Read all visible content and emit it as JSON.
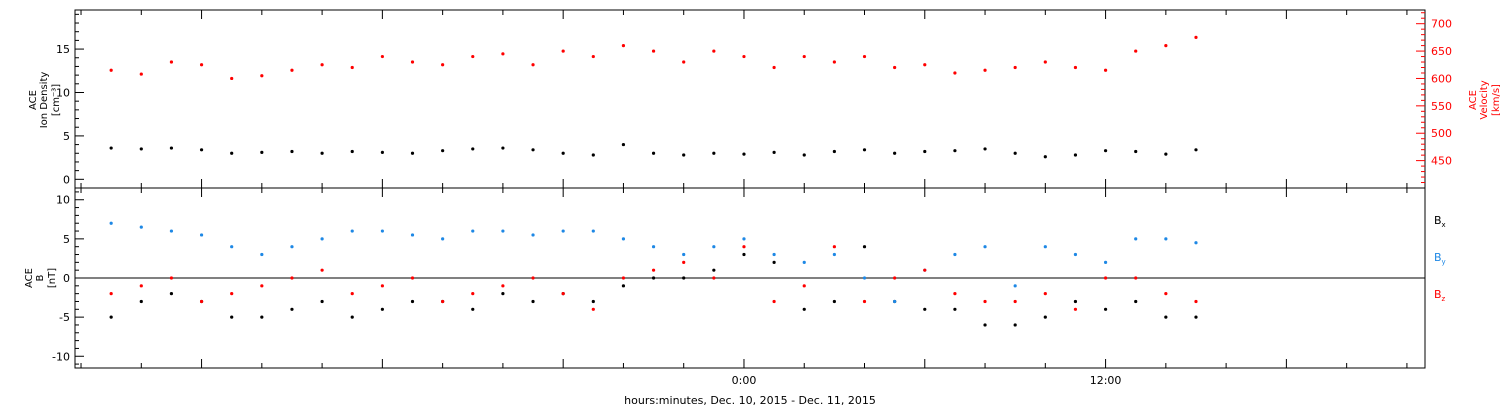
{
  "figure": {
    "footer_label": "hours:minutes, Dec. 10, 2015 - Dec. 11, 2015"
  },
  "chart_data": [
    {
      "type": "scatter",
      "panel": "top",
      "ylabel_left": [
        "ACE",
        "Ion Density",
        "[cm⁻³]"
      ],
      "ylabel_right": [
        "ACE",
        "Velocity",
        "[km/s]"
      ],
      "xlabel": "hours:minutes, Dec. 10, 2015 - Dec. 11, 2015",
      "x_unit": "hours relative to 00:00 Dec. 11, 2015",
      "xlim": [
        -22.2,
        22.6
      ],
      "x_tick_labels": [
        {
          "x": 0,
          "label": "0:00"
        },
        {
          "x": 12,
          "label": "12:00"
        }
      ],
      "ylim_left": [
        -1,
        19.5
      ],
      "ylim_right": [
        400,
        725
      ],
      "y_ticks_left": [
        0,
        5,
        10,
        15
      ],
      "y_ticks_right": [
        450,
        500,
        550,
        600,
        650,
        700
      ],
      "grid": false,
      "colors": {
        "density": "#000000",
        "velocity": "#ff0000"
      },
      "series": [
        {
          "name": "Ion Density",
          "axis": "left",
          "color": "#000000",
          "x": [
            -21,
            -20,
            -19,
            -18,
            -17,
            -16,
            -15,
            -14,
            -13,
            -12,
            -11,
            -10,
            -9,
            -8,
            -7,
            -6,
            -5,
            -4,
            -3,
            -2,
            -1,
            0,
            1,
            2,
            3,
            4,
            5,
            6,
            7,
            8,
            9,
            10,
            11,
            12,
            13,
            14,
            15
          ],
          "y": [
            3.6,
            3.5,
            3.6,
            3.4,
            3.0,
            3.1,
            3.2,
            3.0,
            3.2,
            3.1,
            3.0,
            3.3,
            3.5,
            3.6,
            3.4,
            3.0,
            2.8,
            4.0,
            3.0,
            2.8,
            3.0,
            2.9,
            3.1,
            2.8,
            3.2,
            3.4,
            3.0,
            3.2,
            3.3,
            3.5,
            3.0,
            2.6,
            2.8,
            3.3,
            3.2,
            2.9,
            3.4
          ]
        },
        {
          "name": "Velocity",
          "axis": "right",
          "color": "#ff0000",
          "x": [
            -21,
            -20,
            -19,
            -18,
            -17,
            -16,
            -15,
            -14,
            -13,
            -12,
            -11,
            -10,
            -9,
            -8,
            -7,
            -6,
            -5,
            -4,
            -3,
            -2,
            -1,
            0,
            1,
            2,
            3,
            4,
            5,
            6,
            7,
            8,
            9,
            10,
            11,
            12,
            13,
            14,
            15
          ],
          "y": [
            615,
            608,
            630,
            625,
            600,
            605,
            615,
            625,
            620,
            640,
            630,
            625,
            640,
            645,
            625,
            650,
            640,
            660,
            650,
            630,
            650,
            640,
            620,
            640,
            630,
            640,
            620,
            625,
            610,
            615,
            620,
            630,
            620,
            615,
            650,
            660,
            675
          ]
        }
      ]
    },
    {
      "type": "scatter",
      "panel": "bottom",
      "ylabel": [
        "ACE",
        "B",
        "[nT]"
      ],
      "xlabel": "hours:minutes, Dec. 10, 2015 - Dec. 11, 2015",
      "x_unit": "hours relative to 00:00 Dec. 11, 2015",
      "xlim": [
        -22.2,
        22.6
      ],
      "x_tick_labels": [
        {
          "x": 0,
          "label": "0:00"
        },
        {
          "x": 12,
          "label": "12:00"
        }
      ],
      "ylim": [
        -11.5,
        11.5
      ],
      "y_ticks": [
        -10,
        -5,
        0,
        5,
        10
      ],
      "zero_line": true,
      "grid": false,
      "colors": {
        "Bx": "#000000",
        "By": "#1e88e5",
        "Bz": "#ff0000"
      },
      "legend_position": "right",
      "series": [
        {
          "name": "Bx",
          "color": "#000000",
          "x": [
            -21,
            -20,
            -19,
            -18,
            -17,
            -16,
            -15,
            -14,
            -13,
            -12,
            -11,
            -10,
            -9,
            -8,
            -7,
            -6,
            -5,
            -4,
            -3,
            -2,
            -1,
            0,
            1,
            2,
            3,
            4,
            5,
            6,
            7,
            8,
            9,
            10,
            11,
            12,
            13,
            14,
            15
          ],
          "y": [
            -5,
            -3,
            -2,
            -3,
            -5,
            -5,
            -4,
            -3,
            -5,
            -4,
            -3,
            -3,
            -4,
            -2,
            -3,
            -2,
            -3,
            -1,
            0,
            0,
            1,
            3,
            2,
            -4,
            -3,
            4,
            -3,
            -4,
            -4,
            -6,
            -6,
            -5,
            -3,
            -4,
            -3,
            -5,
            -5
          ]
        },
        {
          "name": "By",
          "color": "#1e88e5",
          "x": [
            -21,
            -20,
            -19,
            -18,
            -17,
            -16,
            -15,
            -14,
            -13,
            -12,
            -11,
            -10,
            -9,
            -8,
            -7,
            -6,
            -5,
            -4,
            -3,
            -2,
            -1,
            0,
            1,
            2,
            3,
            4,
            5,
            6,
            7,
            8,
            9,
            10,
            11,
            12,
            13,
            14,
            15
          ],
          "y": [
            7,
            6.5,
            6,
            5.5,
            4,
            3,
            4,
            5,
            6,
            6,
            5.5,
            5,
            6,
            6,
            5.5,
            6,
            6,
            5,
            4,
            3,
            4,
            5,
            3,
            2,
            3,
            0,
            -3,
            1,
            3,
            4,
            -1,
            4,
            3,
            2,
            5,
            5,
            4.5
          ]
        },
        {
          "name": "Bz",
          "color": "#ff0000",
          "x": [
            -21,
            -20,
            -19,
            -18,
            -17,
            -16,
            -15,
            -14,
            -13,
            -12,
            -11,
            -10,
            -9,
            -8,
            -7,
            -6,
            -5,
            -4,
            -3,
            -2,
            -1,
            0,
            1,
            2,
            3,
            4,
            5,
            6,
            7,
            8,
            9,
            10,
            11,
            12,
            13,
            14,
            15
          ],
          "y": [
            -2,
            -1,
            0,
            -3,
            -2,
            -1,
            0,
            1,
            -2,
            -1,
            0,
            -3,
            -2,
            -1,
            0,
            -2,
            -4,
            0,
            1,
            2,
            0,
            4,
            -3,
            -1,
            4,
            -3,
            0,
            1,
            -2,
            -3,
            -3,
            -2,
            -4,
            0,
            0,
            -2,
            -3
          ]
        }
      ]
    }
  ],
  "legend": [
    {
      "key": "Bx",
      "base": "B",
      "sub": "x",
      "color": "#000000"
    },
    {
      "key": "By",
      "base": "B",
      "sub": "y",
      "color": "#1e88e5"
    },
    {
      "key": "Bz",
      "base": "B",
      "sub": "z",
      "color": "#ff0000"
    }
  ]
}
